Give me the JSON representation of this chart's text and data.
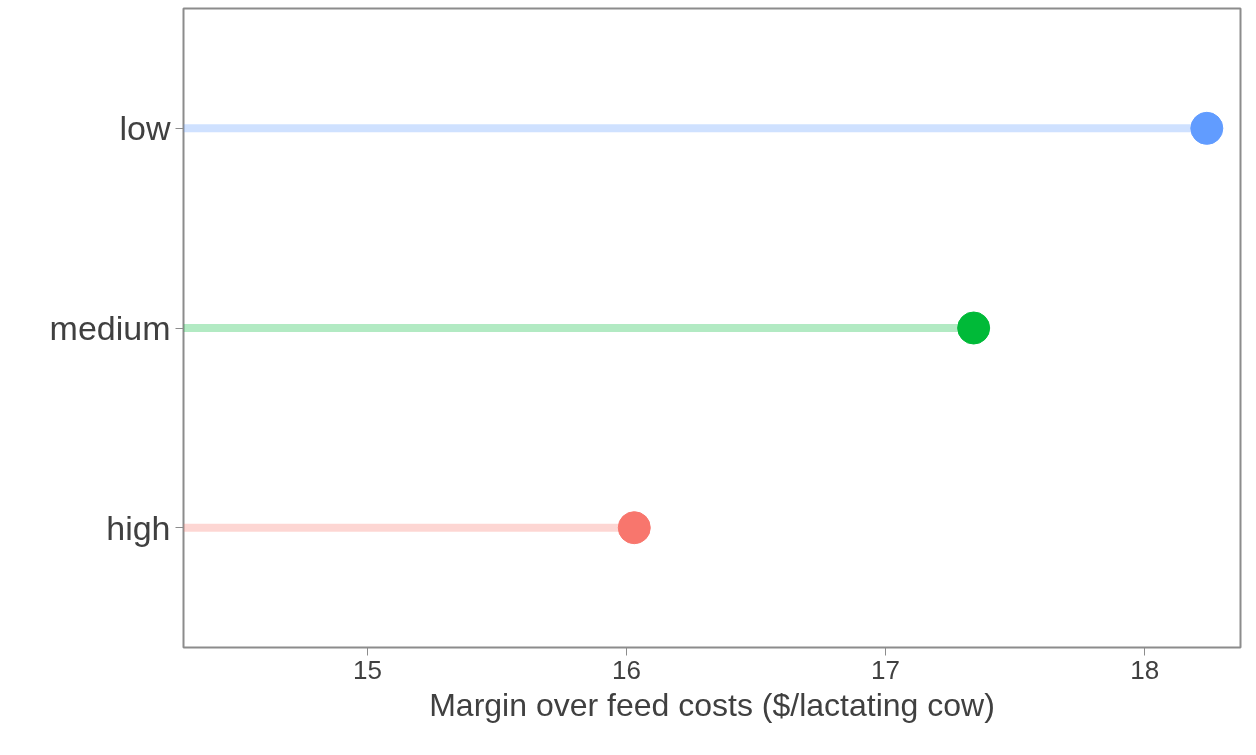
{
  "chart_data": {
    "type": "lollipop",
    "orientation": "horizontal",
    "xlabel": "Margin over feed costs ($/lactating cow)",
    "categories": [
      "low",
      "medium",
      "high"
    ],
    "values": [
      18.24,
      17.34,
      16.03
    ],
    "colors": [
      "#619cff",
      "#00ba38",
      "#f8766d"
    ],
    "xlim": [
      14.29,
      18.37
    ],
    "xticks": [
      15,
      16,
      17,
      18
    ],
    "grid": false,
    "marker": "circle"
  }
}
